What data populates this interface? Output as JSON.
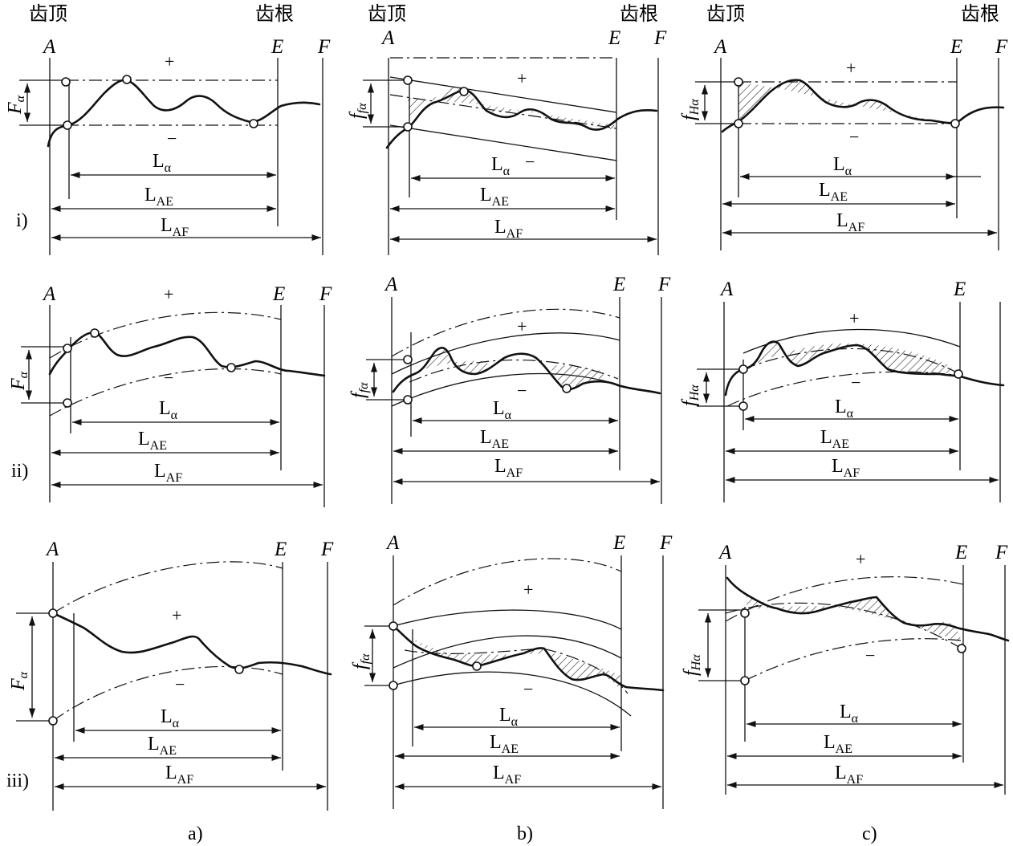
{
  "header": {
    "tip": "齿顶",
    "root": "齿根"
  },
  "points": {
    "A": "A",
    "E": "E",
    "F": "F"
  },
  "signs": {
    "plus": "+",
    "minus": "−"
  },
  "rows": [
    "i)",
    "ii)",
    "iii)"
  ],
  "columns": [
    "a)",
    "b)",
    "c)"
  ],
  "dims": {
    "L": "L",
    "L_alpha_sub": "α",
    "L_AE_sub": "AE",
    "L_AF_sub": "AF"
  },
  "symbols": {
    "F_main": "F",
    "F_sub": "α",
    "ff_main": "f",
    "ff_sub": "fα",
    "fH_main": "f",
    "fH_sub": "Hα"
  }
}
